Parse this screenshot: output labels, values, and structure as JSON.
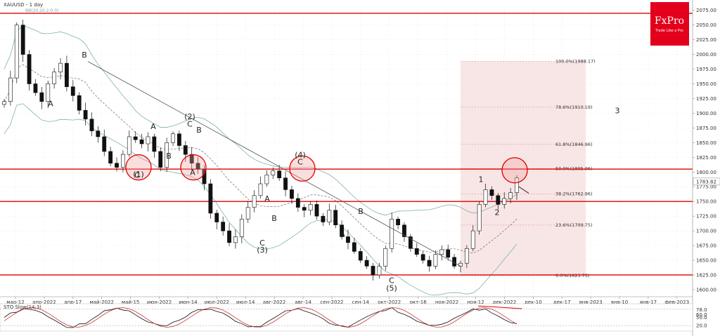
{
  "header": {
    "symbol": "XAUUSD - 1 day",
    "indicator": "BB(20,20.2,0.0)"
  },
  "logo": {
    "brand": "FxPro",
    "tagline": "Trade Like a Pro",
    "color": "#e3001b"
  },
  "colors": {
    "level": "#e00000",
    "bull": "#2e8b57",
    "bear": "#111111",
    "band": "#7fb3a8",
    "fib": "#e6b8b8",
    "trend": "#555555"
  },
  "chart_data": {
    "type": "candlestick",
    "price_axis": {
      "ticks": [
        "2075.00",
        "2050.00",
        "2025.00",
        "2000.00",
        "1975.00",
        "1950.00",
        "1925.00",
        "1900.00",
        "1875.00",
        "1850.00",
        "1825.00",
        "1800.00",
        "1775.00",
        "1750.00",
        "1725.00",
        "1700.00",
        "1675.00",
        "1650.00",
        "1625.00",
        "1600.00"
      ],
      "last_price": "1783.82",
      "ylim": [
        1588,
        2083
      ]
    },
    "date_axis": [
      "мар-12",
      "апр-2022",
      "апр-17",
      "май-2022",
      "май-15",
      "июн-2022",
      "июн-14",
      "июл-2022",
      "июл-14",
      "авг-2022",
      "авг-14",
      "сен-2022",
      "сен-14",
      "окт-2022",
      "окт-16",
      "ноя-2022",
      "ноя-12",
      "дек-2022",
      "дек-10",
      "дек-17",
      "янв-2023",
      "янв-10",
      "янв-17",
      "фев-2023"
    ],
    "horizontal_levels": [
      2070,
      1805,
      1750,
      1625
    ],
    "fibonacci": [
      {
        "label": "100.0%(1988.17)",
        "value": 1988.17
      },
      {
        "label": "78.6%(1910.19)",
        "value": 1910.19
      },
      {
        "label": "61.8%(1846.96)",
        "value": 1846.96
      },
      {
        "label": "50.0%(1805.96)",
        "value": 1805.96
      },
      {
        "label": "38.2%(1762.96)",
        "value": 1762.96
      },
      {
        "label": "23.6%(1709.75)",
        "value": 1709.75
      },
      {
        "label": "0.0%(1623.75)",
        "value": 1623.75
      }
    ],
    "wave_labels": [
      "B",
      "A",
      "C",
      "(1)",
      "C",
      "(2)",
      "A",
      "B",
      "B",
      "A",
      "C",
      "(4)",
      "A",
      "B",
      "C",
      "(3)",
      "B",
      "A",
      "C",
      "(5)",
      "1",
      "2",
      "3"
    ],
    "close_path": [
      1920,
      1960,
      2050,
      2000,
      1950,
      1935,
      1920,
      1950,
      1970,
      1985,
      1945,
      1930,
      1905,
      1890,
      1870,
      1860,
      1835,
      1815,
      1808,
      1830,
      1860,
      1855,
      1848,
      1860,
      1835,
      1808,
      1850,
      1865,
      1845,
      1830,
      1815,
      1805,
      1780,
      1730,
      1715,
      1700,
      1680,
      1690,
      1720,
      1740,
      1760,
      1780,
      1795,
      1802,
      1790,
      1770,
      1755,
      1740,
      1735,
      1745,
      1725,
      1715,
      1735,
      1710,
      1690,
      1680,
      1665,
      1650,
      1640,
      1625,
      1640,
      1670,
      1720,
      1710,
      1690,
      1670,
      1660,
      1650,
      1640,
      1660,
      1668,
      1655,
      1640,
      1645,
      1670,
      1700,
      1745,
      1770,
      1760,
      1745,
      1755,
      1765,
      1790
    ],
    "oscillator": {
      "title": "STO Slow(14,3)",
      "ticks": [
        "78.0",
        "60.0",
        "50.0",
        "20.0"
      ],
      "ylim": [
        0,
        100
      ],
      "levels": [
        80,
        20
      ]
    }
  }
}
